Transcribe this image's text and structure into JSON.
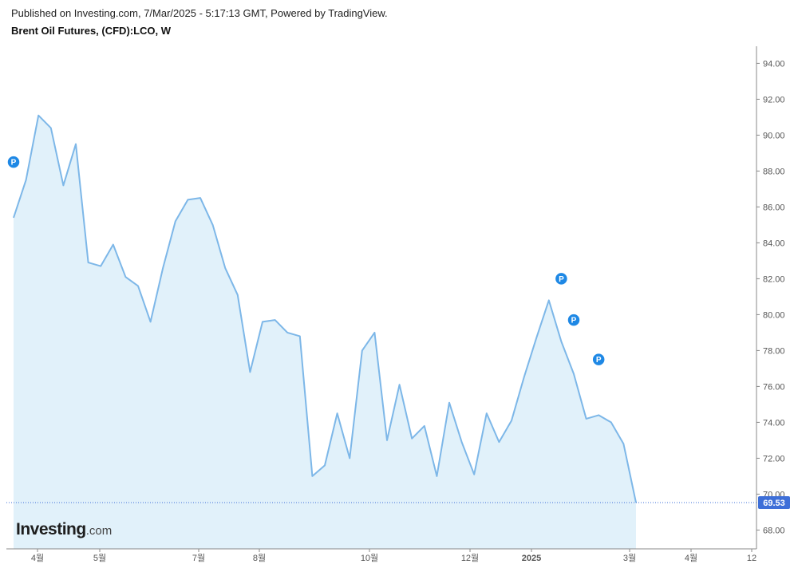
{
  "header": {
    "published": "Published on Investing.com, 7/Mar/2025 - 5:17:13 GMT, Powered by TradingView.",
    "title": "Brent Oil Futures, (CFD):LCO, W"
  },
  "logo": {
    "brand": "Investing",
    "suffix": ".com"
  },
  "colors": {
    "line": "#7db7e8",
    "fill": "#e1f1fa",
    "marker": "#1e88e5",
    "price_label": "#3e6fd8",
    "price_line": "#3e6fd8",
    "axis": "#555555",
    "grid": "#efefef"
  },
  "chart_data": {
    "type": "area",
    "title": "Brent Oil Futures, (CFD):LCO, W",
    "xlabel": "",
    "ylabel": "",
    "ylim": [
      67.0,
      95.0
    ],
    "yticks": [
      68.0,
      70.0,
      72.0,
      74.0,
      76.0,
      78.0,
      80.0,
      82.0,
      84.0,
      86.0,
      88.0,
      90.0,
      92.0,
      94.0
    ],
    "ytick_labels": [
      "68.00",
      "70.00",
      "72.00",
      "74.00",
      "76.00",
      "78.00",
      "80.00",
      "82.00",
      "84.00",
      "86.00",
      "88.00",
      "90.00",
      "92.00",
      "94.00"
    ],
    "xlim": [
      -2,
      58
    ],
    "xticks": [
      {
        "label": "4월",
        "x": 2
      },
      {
        "label": "5월",
        "x": 7
      },
      {
        "label": "7월",
        "x": 15
      },
      {
        "label": "8월",
        "x": 20
      },
      {
        "label": "10월",
        "x": 29
      },
      {
        "label": "12월",
        "x": 37
      },
      {
        "label": "2025",
        "x": 42
      },
      {
        "label": "3월",
        "x": 50
      },
      {
        "label": "4월",
        "x": 55
      },
      {
        "label": "12",
        "x": 60
      }
    ],
    "series": [
      {
        "values": [
          85.4,
          87.5,
          91.1,
          90.4,
          87.2,
          89.5,
          82.9,
          82.7,
          83.9,
          82.1,
          81.6,
          79.6,
          82.6,
          85.2,
          86.4,
          86.5,
          85.0,
          82.6,
          81.1,
          76.8,
          79.6,
          79.7,
          79.0,
          78.8,
          71.0,
          71.6,
          74.5,
          72.0,
          78.0,
          79.0,
          73.0,
          76.1,
          73.1,
          73.8,
          71.0,
          75.1,
          72.9,
          71.1,
          74.5,
          72.9,
          74.1,
          76.5,
          78.7,
          80.8,
          78.5,
          76.7,
          74.2,
          74.4,
          74.0,
          72.8,
          69.53
        ]
      }
    ],
    "last_value": 69.53,
    "last_value_label": "69.53",
    "markers": [
      {
        "label": "P",
        "x": 0,
        "y": 88.5
      },
      {
        "label": "P",
        "x": 44,
        "y": 82.0
      },
      {
        "label": "P",
        "x": 45,
        "y": 79.7
      },
      {
        "label": "P",
        "x": 47,
        "y": 77.5
      }
    ],
    "grid": false,
    "legend": "none"
  }
}
